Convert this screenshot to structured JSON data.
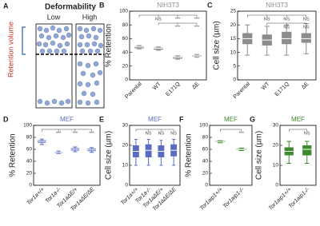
{
  "panel_a": {
    "label": "A",
    "title": "Deformability",
    "low": "Low",
    "high": "High",
    "axis_label": "Retention volume"
  },
  "chart_data": [
    {
      "type": "box",
      "panel": "B",
      "title": "NIH3T3",
      "y_label": "% Retention",
      "color": "#8c8c8c",
      "categories": [
        "Parental",
        "WT",
        "E171Q",
        "ΔE"
      ],
      "boxes": [
        {
          "min": 45,
          "q1": 46,
          "median": 48,
          "q3": 49,
          "max": 50
        },
        {
          "min": 43,
          "q1": 44,
          "median": 46,
          "q3": 47,
          "max": 48
        },
        {
          "min": 30,
          "q1": 31,
          "median": 33,
          "q3": 34,
          "max": 35
        },
        {
          "min": 33,
          "q1": 34,
          "median": 35,
          "q3": 36,
          "max": 37
        }
      ],
      "ylim": [
        0,
        100
      ],
      "yticks": [
        0,
        20,
        40,
        60,
        80,
        100
      ],
      "significance": [
        {
          "from": 0,
          "labels": [
            {
              "at": 1,
              "text": "NS"
            },
            {
              "at": 2,
              "text": "***"
            },
            {
              "at": 3,
              "text": "***"
            }
          ]
        },
        {
          "from": 1,
          "labels": [
            {
              "at": 2,
              "text": "***"
            },
            {
              "at": 3,
              "text": "***"
            }
          ]
        }
      ]
    },
    {
      "type": "box",
      "panel": "C",
      "title": "NIH3T3",
      "y_label": "Cell size (µm)",
      "color": "#8c8c8c",
      "categories": [
        "Parental",
        "WT",
        "E171Q",
        "ΔE"
      ],
      "boxes": [
        {
          "min": 9,
          "q1": 13,
          "median": 15,
          "q3": 17,
          "max": 20
        },
        {
          "min": 9,
          "q1": 12.5,
          "median": 14.5,
          "q3": 16.5,
          "max": 19.5
        },
        {
          "min": 9,
          "q1": 13,
          "median": 15,
          "q3": 17.5,
          "max": 20
        },
        {
          "min": 9.5,
          "q1": 13.5,
          "median": 15,
          "q3": 17,
          "max": 20.5
        }
      ],
      "ylim": [
        0,
        25
      ],
      "yticks": [
        0,
        5,
        10,
        15,
        20,
        25
      ],
      "significance": [
        {
          "from": 0,
          "labels": [
            {
              "at": 1,
              "text": "NS"
            },
            {
              "at": 2,
              "text": "NS"
            },
            {
              "at": 3,
              "text": "NS"
            }
          ]
        },
        {
          "from": 1,
          "labels": [
            {
              "at": 2,
              "text": "NS"
            },
            {
              "at": 3,
              "text": "NS"
            }
          ]
        }
      ]
    },
    {
      "type": "box",
      "panel": "D",
      "title": "MEF",
      "y_label": "% Retention",
      "color": "#5a6cc2",
      "categories": [
        "Tor1a+/+",
        "Tor1a-/-",
        "Tor1aΔE/+",
        "Tor1aΔE/ΔE"
      ],
      "boxes": [
        {
          "min": 68,
          "q1": 71,
          "median": 73,
          "q3": 75,
          "max": 77
        },
        {
          "min": 53,
          "q1": 54,
          "median": 55,
          "q3": 56,
          "max": 57
        },
        {
          "min": 56,
          "q1": 58,
          "median": 60,
          "q3": 62,
          "max": 64
        },
        {
          "min": 55,
          "q1": 57,
          "median": 59,
          "q3": 61,
          "max": 63
        }
      ],
      "ylim": [
        0,
        100
      ],
      "yticks": [
        0,
        20,
        40,
        60,
        80,
        100
      ],
      "significance": [
        {
          "from": 0,
          "labels": [
            {
              "at": 1,
              "text": "***"
            },
            {
              "at": 2,
              "text": "***"
            },
            {
              "at": 3,
              "text": "***"
            }
          ]
        }
      ]
    },
    {
      "type": "box",
      "panel": "E",
      "title": "MEF",
      "y_label": "Cell size (µm)",
      "color": "#5a6cc2",
      "categories": [
        "Tor1a+/+",
        "Tor1a-/-",
        "Tor1aΔE/+",
        "Tor1aΔE/ΔE"
      ],
      "boxes": [
        {
          "min": 10,
          "q1": 14,
          "median": 17,
          "q3": 20,
          "max": 23
        },
        {
          "min": 10,
          "q1": 14,
          "median": 17.5,
          "q3": 20.5,
          "max": 23
        },
        {
          "min": 10,
          "q1": 14,
          "median": 17,
          "q3": 20,
          "max": 22.5
        },
        {
          "min": 10,
          "q1": 14.5,
          "median": 17.5,
          "q3": 20.5,
          "max": 23
        }
      ],
      "ylim": [
        0,
        30
      ],
      "yticks": [
        0,
        10,
        20,
        30
      ],
      "significance": [
        {
          "from": 0,
          "labels": [
            {
              "at": 1,
              "text": "NS"
            },
            {
              "at": 2,
              "text": "NS"
            },
            {
              "at": 3,
              "text": "NS"
            }
          ]
        }
      ]
    },
    {
      "type": "box",
      "panel": "F",
      "title": "MEF",
      "y_label": "% Retention",
      "color": "#3f8a2e",
      "categories": [
        "Tor1aip1+/+",
        "Tor1aip1-/-"
      ],
      "boxes": [
        {
          "min": 71,
          "q1": 72,
          "median": 73,
          "q3": 74,
          "max": 74.5
        },
        {
          "min": 58,
          "q1": 59,
          "median": 60,
          "q3": 61,
          "max": 62
        }
      ],
      "ylim": [
        0,
        100
      ],
      "yticks": [
        0,
        20,
        40,
        60,
        80,
        100
      ],
      "significance": [
        {
          "from": 0,
          "labels": [
            {
              "at": 1,
              "text": "***"
            }
          ]
        }
      ]
    },
    {
      "type": "box",
      "panel": "G",
      "title": "MEF",
      "y_label": "Cell size (µm)",
      "color": "#3f8a2e",
      "categories": [
        "Tor1aip1+/+",
        "Tor1aip1-/-"
      ],
      "boxes": [
        {
          "min": 11,
          "q1": 15,
          "median": 17,
          "q3": 19,
          "max": 22
        },
        {
          "min": 11,
          "q1": 15,
          "median": 18,
          "q3": 20,
          "max": 22
        }
      ],
      "ylim": [
        0,
        30
      ],
      "yticks": [
        0,
        10,
        20,
        30
      ],
      "significance": [
        {
          "from": 0,
          "labels": [
            {
              "at": 1,
              "text": "NS"
            }
          ]
        }
      ]
    }
  ]
}
